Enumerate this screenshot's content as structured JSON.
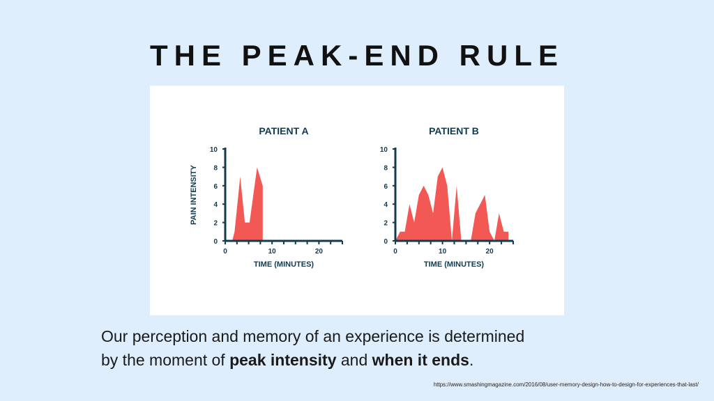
{
  "slide": {
    "title": "THE PEAK-END RULE",
    "caption": {
      "line1": "Our perception and memory of an experience is determined",
      "line2_before": "by the moment of ",
      "peak": "peak intensity",
      "middle": " and ",
      "end": "when it ends",
      "period": "."
    },
    "source": "https://www.smashingmagazine.com/2016/08/user-memory-design-how-to-design-for-experiences-that-last/"
  },
  "colors": {
    "fill": "#f25955",
    "axis": "#133a4f"
  },
  "chart_data": [
    {
      "type": "area",
      "title": "PATIENT A",
      "xlabel": "TIME (MINUTES)",
      "ylabel": "PAIN INTENSITY",
      "xlim": [
        0,
        25
      ],
      "ylim": [
        0,
        10
      ],
      "xticks": [
        0,
        10,
        20
      ],
      "yticks": [
        0,
        2,
        4,
        6,
        8,
        10
      ],
      "points": [
        [
          1.5,
          0
        ],
        [
          2,
          1
        ],
        [
          3.2,
          7
        ],
        [
          4.2,
          2
        ],
        [
          5.2,
          2
        ],
        [
          6.8,
          8
        ],
        [
          8,
          6
        ],
        [
          8,
          0
        ]
      ]
    },
    {
      "type": "area",
      "title": "PATIENT B",
      "xlabel": "TIME (MINUTES)",
      "ylabel": "",
      "xlim": [
        0,
        25
      ],
      "ylim": [
        0,
        10
      ],
      "xticks": [
        0,
        10,
        20
      ],
      "yticks": [
        0,
        2,
        4,
        6,
        8,
        10
      ],
      "points": [
        [
          0,
          0
        ],
        [
          1,
          1
        ],
        [
          2,
          1
        ],
        [
          3,
          4
        ],
        [
          4,
          2
        ],
        [
          5,
          5
        ],
        [
          6,
          6
        ],
        [
          7,
          5
        ],
        [
          8,
          3
        ],
        [
          9,
          7
        ],
        [
          10,
          8
        ],
        [
          11,
          6
        ],
        [
          12,
          0
        ],
        [
          13,
          6
        ],
        [
          14,
          0
        ],
        [
          16,
          0
        ],
        [
          17,
          3
        ],
        [
          19,
          5
        ],
        [
          20,
          1
        ],
        [
          21,
          0
        ],
        [
          22,
          3
        ],
        [
          23,
          1
        ],
        [
          24,
          1
        ],
        [
          24,
          0
        ]
      ]
    }
  ]
}
